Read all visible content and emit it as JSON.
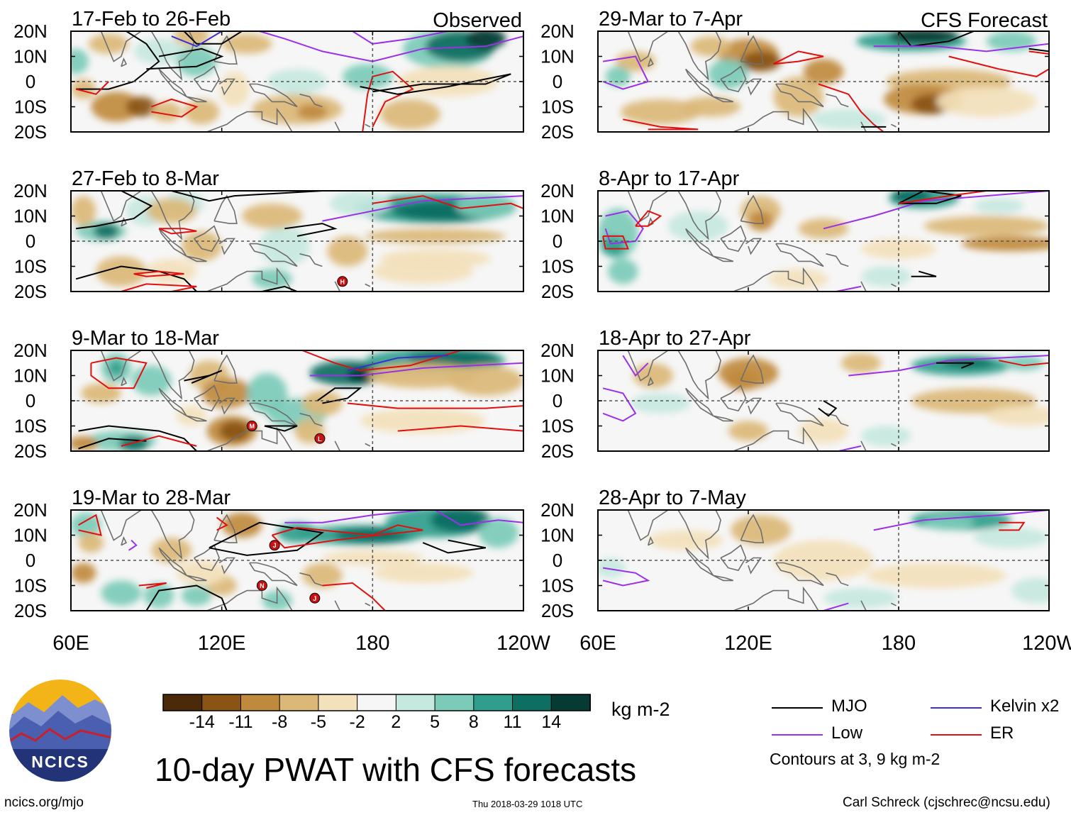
{
  "chart_data": {
    "type": "heatmap",
    "title": "10-day PWAT with CFS forecasts",
    "variable": "PWAT anomaly",
    "units": "kg m-2",
    "observed_label": "Observed",
    "forecast_label": "CFS Forecast",
    "x_ticks": [
      "60E",
      "120E",
      "180",
      "120W"
    ],
    "y_ticks": [
      "20N",
      "10N",
      "0",
      "10S",
      "20S"
    ],
    "xlim_deg_east": [
      60,
      240
    ],
    "ylim_deg_north": [
      -20,
      20
    ],
    "panels": [
      {
        "period": "17-Feb to 26-Feb",
        "kind": "Observed",
        "tc_symbols": []
      },
      {
        "period": "27-Feb to 8-Mar",
        "kind": "Observed",
        "tc_symbols": [
          {
            "label": "H",
            "lon": 168,
            "lat": -16
          }
        ]
      },
      {
        "period": "9-Mar to 18-Mar",
        "kind": "Observed",
        "tc_symbols": [
          {
            "label": "M",
            "lon": 132,
            "lat": -10
          },
          {
            "label": "L",
            "lon": 159,
            "lat": -15
          }
        ]
      },
      {
        "period": "19-Mar to 28-Mar",
        "kind": "Observed",
        "tc_symbols": [
          {
            "label": "J",
            "lon": 141,
            "lat": 6
          },
          {
            "label": "N",
            "lon": 136,
            "lat": -10
          },
          {
            "label": "J",
            "lon": 157,
            "lat": -15
          }
        ]
      },
      {
        "period": "29-Mar to 7-Apr",
        "kind": "CFS Forecast",
        "tc_symbols": []
      },
      {
        "period": "8-Apr to 17-Apr",
        "kind": "CFS Forecast",
        "tc_symbols": []
      },
      {
        "period": "18-Apr to 27-Apr",
        "kind": "CFS Forecast",
        "tc_symbols": []
      },
      {
        "period": "28-Apr to 7-May",
        "kind": "CFS Forecast",
        "tc_symbols": []
      }
    ],
    "colorbar": {
      "values": [
        "-14",
        "-11",
        "-8",
        "-5",
        "-2",
        "2",
        "5",
        "8",
        "11",
        "14"
      ],
      "colors": [
        "#4a2a08",
        "#8a5415",
        "#c08a3e",
        "#dbb878",
        "#f3e1bb",
        "#f6f6f6",
        "#c5e8df",
        "#7ccbb9",
        "#2f9e8c",
        "#0d6e62",
        "#063b33"
      ]
    },
    "legend": [
      {
        "label": "MJO",
        "color": "#000000"
      },
      {
        "label": "Kelvin x2",
        "color": "#3b2fd0"
      },
      {
        "label": "Low",
        "color": "#9b30e8"
      },
      {
        "label": "ER",
        "color": "#e01010"
      }
    ],
    "contour_note": "Contours at 3, 9 kg m-2"
  },
  "footer": {
    "logo_text": "NCICS",
    "site": "ncics.org/mjo",
    "timestamp": "Thu 2018-03-29 1018 UTC",
    "credit": "Carl Schreck (cjschrec@ncsu.edu)"
  }
}
